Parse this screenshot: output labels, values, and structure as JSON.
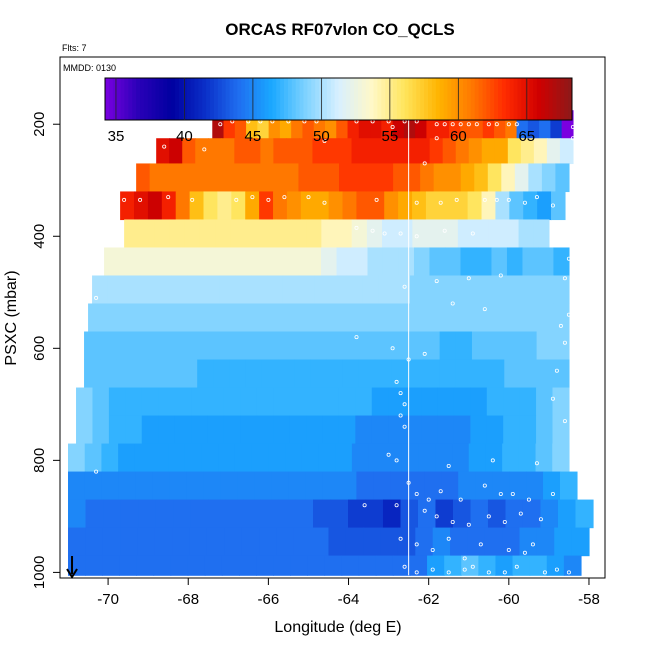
{
  "chart_data": {
    "type": "heatmap",
    "title": "ORCAS RF07vlon CO_QCLS",
    "flts_label": "Flts: 7",
    "mmdd_label": "MMDD: 0130",
    "xlabel": "Longitude (deg E)",
    "ylabel": "PSXC (mbar)",
    "xlim": [
      -71.2,
      -57.6
    ],
    "ylim": [
      1010,
      80
    ],
    "x_ticks": [
      -70,
      -68,
      -66,
      -64,
      -62,
      -60,
      -58
    ],
    "x_tick_labels": [
      "-70",
      "-68",
      "-66",
      "-64",
      "-62",
      "-60",
      "-58"
    ],
    "y_ticks": [
      200,
      400,
      600,
      800,
      1000
    ],
    "y_tick_labels": [
      "200",
      "400",
      "600",
      "800",
      "1000"
    ],
    "colorbar": {
      "min": 34.2,
      "max": 68.3,
      "ticks": [
        35,
        40,
        45,
        50,
        55,
        60,
        65
      ],
      "tick_labels": [
        "35",
        "40",
        "45",
        "50",
        "55",
        "60",
        "65"
      ],
      "colors": [
        "#7a00e0",
        "#2a00b8",
        "#0000a0",
        "#0a2fc8",
        "#1f6ef0",
        "#1aa8ff",
        "#7dd2ff",
        "#d8f0ff",
        "#fff8c8",
        "#ffe45a",
        "#ffb400",
        "#ff7800",
        "#ff2a00",
        "#d00000",
        "#8c1a1a"
      ]
    },
    "vertical_line_lon": -62.5,
    "rows": [
      {
        "p_top": 175,
        "p_bot": 225,
        "x_start": -67.4,
        "x_end": -58.4,
        "values": [
          67,
          63,
          62,
          58,
          57,
          60,
          59,
          61,
          62,
          61,
          60,
          62,
          64,
          65,
          65,
          64,
          66,
          67,
          66,
          64,
          64,
          63,
          62,
          62,
          63,
          62,
          61,
          44,
          43,
          44,
          42,
          34
        ]
      },
      {
        "p_top": 225,
        "p_bot": 270,
        "x_start": -68.8,
        "x_end": -58.4,
        "values": [
          65,
          66,
          62,
          61,
          61,
          61,
          62,
          62,
          61,
          62,
          62,
          62,
          63,
          63,
          63,
          64,
          64,
          64,
          64,
          64,
          64,
          63,
          62,
          61,
          60,
          59,
          59,
          56,
          55,
          54,
          52,
          51
        ]
      },
      {
        "p_top": 270,
        "p_bot": 320,
        "x_start": -69.3,
        "x_end": -58.5,
        "values": [
          62,
          61,
          61,
          61,
          61,
          61,
          61,
          61,
          61,
          61,
          61,
          61,
          62,
          62,
          62,
          63,
          63,
          63,
          63,
          62,
          62,
          61,
          60,
          60,
          59,
          58,
          56,
          54,
          52,
          50,
          49,
          48
        ]
      },
      {
        "p_top": 320,
        "p_bot": 370,
        "x_start": -69.7,
        "x_end": -58.6,
        "values": [
          64,
          65,
          66,
          64,
          61,
          58,
          56,
          55,
          56,
          59,
          63,
          61,
          60,
          59,
          59,
          60,
          61,
          62,
          62,
          60,
          59,
          58,
          57,
          57,
          57,
          56,
          54,
          50,
          48,
          47,
          46,
          48
        ]
      },
      {
        "p_top": 370,
        "p_bot": 420,
        "x_start": -69.6,
        "x_end": -59.0,
        "values": [
          55,
          55,
          55,
          55,
          55,
          55,
          55,
          55,
          55,
          55,
          55,
          55,
          55,
          54,
          54,
          53,
          52,
          51,
          51,
          52,
          52,
          52,
          51,
          51,
          51,
          51,
          50,
          50
        ]
      },
      {
        "p_top": 420,
        "p_bot": 470,
        "x_start": -70.1,
        "x_end": -58.5,
        "values": [
          53,
          53,
          53,
          53,
          53,
          53,
          53,
          53,
          53,
          53,
          53,
          53,
          53,
          53,
          52,
          51,
          51,
          50,
          50,
          50,
          49,
          48,
          48,
          47,
          47,
          48,
          47,
          48,
          48,
          47
        ]
      },
      {
        "p_top": 470,
        "p_bot": 520,
        "x_start": -70.4,
        "x_end": -58.5,
        "values": [
          50,
          50,
          50,
          50,
          50,
          50,
          50,
          50,
          50,
          50,
          50,
          50,
          50,
          50,
          50,
          50,
          50,
          50,
          50,
          50,
          49,
          49,
          49,
          49,
          49,
          49,
          49,
          49,
          49,
          49
        ]
      },
      {
        "p_top": 520,
        "p_bot": 570,
        "x_start": -70.5,
        "x_end": -58.5,
        "values": [
          49,
          49,
          49,
          49,
          49,
          49,
          49,
          49,
          49,
          49,
          49,
          49,
          49,
          49,
          49,
          49,
          49,
          49,
          49,
          49,
          49,
          49,
          49,
          49,
          49,
          49,
          49,
          49,
          49,
          49
        ]
      },
      {
        "p_top": 570,
        "p_bot": 620,
        "x_start": -70.6,
        "x_end": -58.5,
        "values": [
          48,
          48,
          48,
          48,
          48,
          48,
          48,
          48,
          48,
          48,
          48,
          48,
          48,
          48,
          48,
          48,
          48,
          48,
          48,
          48,
          48,
          48,
          47,
          47,
          48,
          48,
          48,
          48,
          49,
          49
        ]
      },
      {
        "p_top": 620,
        "p_bot": 670,
        "x_start": -70.6,
        "x_end": -58.5,
        "values": [
          48,
          48,
          48,
          48,
          48,
          48,
          48,
          47,
          47,
          47,
          47,
          47,
          47,
          47,
          47,
          47,
          47,
          47,
          47,
          47,
          47,
          47,
          47,
          47,
          47,
          47,
          48,
          48,
          48,
          48
        ]
      },
      {
        "p_top": 670,
        "p_bot": 720,
        "x_start": -70.8,
        "x_end": -58.5,
        "values": [
          49,
          48,
          47,
          47,
          47,
          47,
          47,
          47,
          47,
          47,
          47,
          47,
          47,
          47,
          47,
          47,
          47,
          47,
          46,
          46,
          46,
          46,
          46,
          46,
          46,
          47,
          47,
          47,
          48,
          49
        ]
      },
      {
        "p_top": 720,
        "p_bot": 770,
        "x_start": -70.8,
        "x_end": -58.5,
        "values": [
          49,
          48,
          47,
          47,
          46,
          46,
          46,
          46,
          46,
          46,
          46,
          46,
          46,
          46,
          46,
          46,
          46,
          45,
          45,
          45,
          45,
          45,
          45,
          45,
          46,
          46,
          47,
          47,
          48,
          49
        ]
      },
      {
        "p_top": 770,
        "p_bot": 820,
        "x_start": -71.0,
        "x_end": -58.5,
        "values": [
          49,
          48,
          47,
          46,
          46,
          46,
          46,
          46,
          46,
          46,
          46,
          46,
          46,
          46,
          46,
          46,
          46,
          45,
          45,
          45,
          45,
          45,
          45,
          45,
          46,
          46,
          47,
          47,
          48,
          49
        ]
      },
      {
        "p_top": 820,
        "p_bot": 870,
        "x_start": -71.0,
        "x_end": -58.3,
        "values": [
          45,
          45,
          45,
          45,
          45,
          45,
          45,
          45,
          45,
          45,
          45,
          45,
          45,
          45,
          45,
          45,
          45,
          44,
          44,
          44,
          44,
          44,
          44,
          45,
          45,
          45,
          45,
          45,
          46,
          47
        ]
      },
      {
        "p_top": 870,
        "p_bot": 920,
        "x_start": -71.0,
        "x_end": -57.9,
        "values": [
          45,
          44,
          44,
          44,
          44,
          44,
          44,
          44,
          44,
          44,
          44,
          44,
          44,
          44,
          43,
          43,
          42,
          42,
          41,
          43,
          44,
          42,
          43,
          44,
          43,
          44,
          44,
          45,
          46,
          47
        ]
      },
      {
        "p_top": 920,
        "p_bot": 970,
        "x_start": -71.0,
        "x_end": -58.0,
        "values": [
          44,
          44,
          44,
          44,
          44,
          44,
          44,
          44,
          44,
          44,
          44,
          44,
          44,
          44,
          44,
          43,
          43,
          43,
          43,
          43,
          44,
          45,
          44,
          44,
          44,
          44,
          45,
          45,
          46,
          46
        ]
      },
      {
        "p_top": 970,
        "p_bot": 1005,
        "x_start": -71.0,
        "x_end": -58.2,
        "values": [
          44,
          44,
          44,
          44,
          44,
          44,
          44,
          44,
          44,
          44,
          44,
          44,
          44,
          44,
          44,
          44,
          44,
          44,
          44,
          44,
          44,
          46,
          47,
          48,
          47,
          46,
          47,
          47,
          46,
          45
        ]
      }
    ],
    "points": [
      [
        -67.2,
        200
      ],
      [
        -66.9,
        195
      ],
      [
        -66.5,
        195
      ],
      [
        -66.2,
        195
      ],
      [
        -65.9,
        195
      ],
      [
        -65.5,
        195
      ],
      [
        -65.1,
        195
      ],
      [
        -64.8,
        195
      ],
      [
        -63.8,
        195
      ],
      [
        -63.4,
        195
      ],
      [
        -63.0,
        195
      ],
      [
        -62.6,
        195
      ],
      [
        -62.3,
        195
      ],
      [
        -61.8,
        200
      ],
      [
        -61.6,
        200
      ],
      [
        -61.4,
        200
      ],
      [
        -61.2,
        200
      ],
      [
        -61.0,
        200
      ],
      [
        -60.8,
        200
      ],
      [
        -60.5,
        200
      ],
      [
        -60.3,
        200
      ],
      [
        -60.0,
        200
      ],
      [
        -59.8,
        200
      ],
      [
        -62.9,
        205
      ],
      [
        -61.8,
        225
      ],
      [
        -58.4,
        205
      ],
      [
        -58.4,
        225
      ],
      [
        -68.6,
        240
      ],
      [
        -67.6,
        245
      ],
      [
        -64.6,
        230
      ],
      [
        -62.1,
        270
      ],
      [
        -58.4,
        275
      ],
      [
        -69.6,
        335
      ],
      [
        -69.2,
        335
      ],
      [
        -68.5,
        330
      ],
      [
        -67.9,
        335
      ],
      [
        -66.8,
        335
      ],
      [
        -66.4,
        330
      ],
      [
        -66.0,
        335
      ],
      [
        -65.6,
        330
      ],
      [
        -65.0,
        330
      ],
      [
        -64.6,
        340
      ],
      [
        -63.3,
        335
      ],
      [
        -62.3,
        340
      ],
      [
        -61.7,
        340
      ],
      [
        -61.3,
        335
      ],
      [
        -60.6,
        335
      ],
      [
        -60.3,
        335
      ],
      [
        -60.0,
        335
      ],
      [
        -59.6,
        340
      ],
      [
        -59.3,
        330
      ],
      [
        -58.9,
        345
      ],
      [
        -58.5,
        350
      ],
      [
        -58.2,
        330
      ],
      [
        -63.8,
        385
      ],
      [
        -63.4,
        390
      ],
      [
        -63.1,
        395
      ],
      [
        -62.7,
        395
      ],
      [
        -62.3,
        400
      ],
      [
        -61.6,
        390
      ],
      [
        -60.9,
        395
      ],
      [
        -58.9,
        405
      ],
      [
        -58.5,
        440
      ],
      [
        -62.6,
        490
      ],
      [
        -61.8,
        480
      ],
      [
        -61.0,
        475
      ],
      [
        -60.2,
        470
      ],
      [
        -58.6,
        475
      ],
      [
        -70.3,
        510
      ],
      [
        -61.4,
        520
      ],
      [
        -60.6,
        530
      ],
      [
        -58.5,
        540
      ],
      [
        -58.7,
        560
      ],
      [
        -63.8,
        580
      ],
      [
        -62.9,
        600
      ],
      [
        -62.5,
        620
      ],
      [
        -62.1,
        610
      ],
      [
        -58.6,
        590
      ],
      [
        -58.8,
        640
      ],
      [
        -62.8,
        660
      ],
      [
        -62.7,
        680
      ],
      [
        -62.6,
        700
      ],
      [
        -62.7,
        720
      ],
      [
        -62.6,
        740
      ],
      [
        -58.9,
        690
      ],
      [
        -58.6,
        730
      ],
      [
        -63.0,
        790
      ],
      [
        -62.8,
        800
      ],
      [
        -70.3,
        820
      ],
      [
        -61.5,
        810
      ],
      [
        -60.4,
        800
      ],
      [
        -59.3,
        805
      ],
      [
        -62.5,
        840
      ],
      [
        -62.3,
        860
      ],
      [
        -62.0,
        870
      ],
      [
        -61.7,
        855
      ],
      [
        -61.2,
        870
      ],
      [
        -60.6,
        845
      ],
      [
        -60.2,
        860
      ],
      [
        -59.9,
        860
      ],
      [
        -59.5,
        870
      ],
      [
        -58.9,
        860
      ],
      [
        -63.6,
        880
      ],
      [
        -62.8,
        880
      ],
      [
        -62.1,
        890
      ],
      [
        -61.8,
        900
      ],
      [
        -61.4,
        910
      ],
      [
        -61.0,
        915
      ],
      [
        -60.5,
        900
      ],
      [
        -60.1,
        910
      ],
      [
        -59.7,
        895
      ],
      [
        -59.2,
        905
      ],
      [
        -62.7,
        940
      ],
      [
        -62.3,
        950
      ],
      [
        -61.9,
        960
      ],
      [
        -61.5,
        940
      ],
      [
        -61.1,
        975
      ],
      [
        -60.7,
        950
      ],
      [
        -60.0,
        960
      ],
      [
        -59.6,
        965
      ],
      [
        -59.4,
        950
      ],
      [
        -62.6,
        990
      ],
      [
        -62.3,
        1000
      ],
      [
        -61.9,
        995
      ],
      [
        -61.5,
        1000
      ],
      [
        -61.1,
        995
      ],
      [
        -60.9,
        990
      ],
      [
        -60.5,
        1000
      ],
      [
        -60.1,
        1000
      ],
      [
        -59.8,
        990
      ],
      [
        -59.1,
        1000
      ],
      [
        -58.8,
        995
      ],
      [
        -58.5,
        1000
      ]
    ],
    "arrow_lon": -70.9
  }
}
